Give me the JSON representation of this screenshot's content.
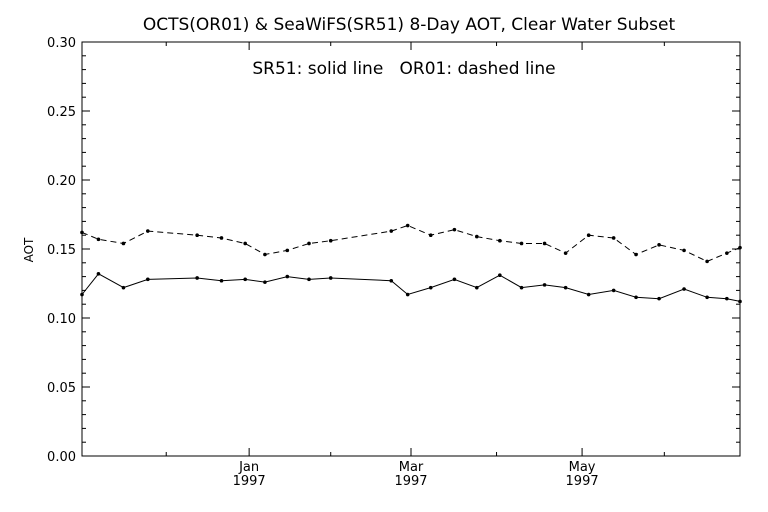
{
  "chart_data": {
    "type": "line",
    "title": "OCTS(OR01) & SeaWiFS(SR51) 8-Day AOT, Clear Water Subset",
    "annotation": "SR51: solid line   OR01: dashed line",
    "ylabel": "AOT",
    "xlabel": "",
    "ylim": [
      0.0,
      0.3
    ],
    "yticks": [
      "0.00",
      "0.05",
      "0.10",
      "0.15",
      "0.20",
      "0.25",
      "0.30"
    ],
    "xticks": [
      {
        "month": "Jan",
        "year": "1997",
        "pos": 0.254
      },
      {
        "month": "Mar",
        "year": "1997",
        "pos": 0.5
      },
      {
        "month": "May",
        "year": "1997",
        "pos": 0.76
      }
    ],
    "grid": false,
    "series": [
      {
        "name": "SR51",
        "style": "solid",
        "points": [
          [
            0.0,
            0.117
          ],
          [
            0.025,
            0.132
          ],
          [
            0.063,
            0.122
          ],
          [
            0.1,
            0.128
          ],
          [
            0.175,
            0.129
          ],
          [
            0.212,
            0.127
          ],
          [
            0.248,
            0.128
          ],
          [
            0.278,
            0.126
          ],
          [
            0.312,
            0.13
          ],
          [
            0.345,
            0.128
          ],
          [
            0.378,
            0.129
          ],
          [
            0.47,
            0.127
          ],
          [
            0.495,
            0.117
          ],
          [
            0.53,
            0.122
          ],
          [
            0.566,
            0.128
          ],
          [
            0.6,
            0.122
          ],
          [
            0.635,
            0.131
          ],
          [
            0.668,
            0.122
          ],
          [
            0.703,
            0.124
          ],
          [
            0.735,
            0.122
          ],
          [
            0.77,
            0.117
          ],
          [
            0.808,
            0.12
          ],
          [
            0.842,
            0.115
          ],
          [
            0.877,
            0.114
          ],
          [
            0.915,
            0.121
          ],
          [
            0.95,
            0.115
          ],
          [
            0.98,
            0.114
          ],
          [
            1.0,
            0.112
          ]
        ]
      },
      {
        "name": "OR01",
        "style": "dashed",
        "points": [
          [
            0.0,
            0.162
          ],
          [
            0.025,
            0.157
          ],
          [
            0.063,
            0.154
          ],
          [
            0.1,
            0.163
          ],
          [
            0.175,
            0.16
          ],
          [
            0.212,
            0.158
          ],
          [
            0.248,
            0.154
          ],
          [
            0.278,
            0.146
          ],
          [
            0.312,
            0.149
          ],
          [
            0.345,
            0.154
          ],
          [
            0.378,
            0.156
          ],
          [
            0.47,
            0.163
          ],
          [
            0.495,
            0.167
          ],
          [
            0.53,
            0.16
          ],
          [
            0.566,
            0.164
          ],
          [
            0.6,
            0.159
          ],
          [
            0.635,
            0.156
          ],
          [
            0.668,
            0.154
          ],
          [
            0.703,
            0.154
          ],
          [
            0.735,
            0.147
          ],
          [
            0.77,
            0.16
          ],
          [
            0.808,
            0.158
          ],
          [
            0.842,
            0.146
          ],
          [
            0.877,
            0.153
          ],
          [
            0.915,
            0.149
          ],
          [
            0.95,
            0.141
          ],
          [
            0.98,
            0.147
          ],
          [
            1.0,
            0.151
          ]
        ]
      }
    ]
  }
}
